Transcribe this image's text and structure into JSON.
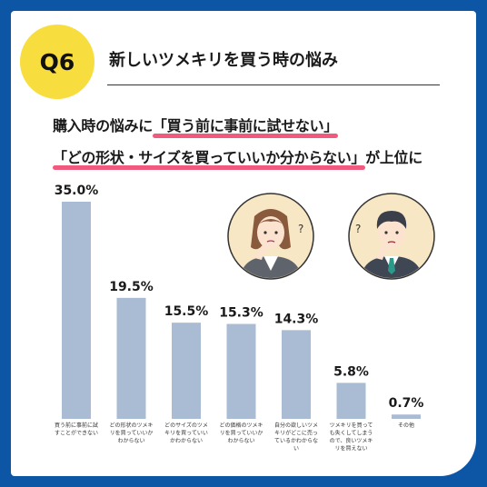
{
  "badge": "Q6",
  "title": "新しいツメキリを買う時の悩み",
  "headline": {
    "line1_prefix": "購入時の悩みに",
    "line1_highlight": "「買う前に事前に試せない」",
    "line2_highlight": "「どの形状・サイズを買っていいか分からない」",
    "line2_suffix": "が上位に"
  },
  "colors": {
    "background": "#0d56a6",
    "badge": "#f7dd3e",
    "bar": "#a9bcd3",
    "underline": "#f05a7e"
  },
  "chart_data": {
    "type": "bar",
    "categories": [
      [
        "買う前に事前に試",
        "すことができない"
      ],
      [
        "どの形状のツメキ",
        "リを買っていいか",
        "わからない"
      ],
      [
        "どのサイズのツメ",
        "キリを買っていい",
        "かわからない"
      ],
      [
        "どの価格のツメキ",
        "リを買っていいか",
        "わからない"
      ],
      [
        "自分の欲しいツメ",
        "キリがどこに売っ",
        "ているかわからな",
        "い"
      ],
      [
        "ツメキリを買って",
        "も失くしてしまう",
        "ので、良いツメキ",
        "リを買えない"
      ],
      [
        "その他"
      ]
    ],
    "values": [
      35.0,
      19.5,
      15.5,
      15.3,
      14.3,
      5.8,
      0.7
    ],
    "data_labels": [
      "35.0%",
      "19.5%",
      "15.5%",
      "15.3%",
      "14.3%",
      "5.8%",
      "0.7%"
    ],
    "ylim": [
      0,
      35
    ],
    "grid": false
  },
  "illustrations": [
    "thinking-woman-icon",
    "thinking-man-icon"
  ]
}
